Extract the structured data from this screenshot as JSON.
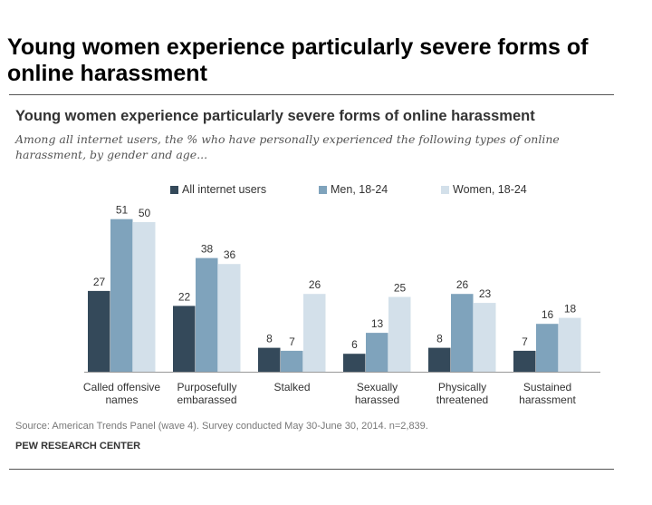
{
  "slide": {
    "title": "Young women experience particularly severe forms of online harassment"
  },
  "chart_data": {
    "type": "bar",
    "title": "Young women experience particularly severe forms of online harassment",
    "subtitle": "Among all internet users, the % who have personally experienced the following types of online harassment, by gender and age...",
    "xlabel": "",
    "ylabel": "",
    "ylim": [
      0,
      51
    ],
    "grid": false,
    "legend_position": "top",
    "categories": [
      [
        "Called offensive",
        "names"
      ],
      [
        "Purposefully",
        "embarassed"
      ],
      [
        "Stalked"
      ],
      [
        "Sexually",
        "harassed"
      ],
      [
        "Physically",
        "threatened"
      ],
      [
        "Sustained",
        "harassment"
      ]
    ],
    "series": [
      {
        "name": "All internet users",
        "color": "#34495a",
        "values": [
          27,
          22,
          8,
          6,
          8,
          7
        ]
      },
      {
        "name": "Men, 18-24",
        "color": "#7fa3bc",
        "values": [
          51,
          38,
          7,
          13,
          26,
          16
        ]
      },
      {
        "name": "Women, 18-24",
        "color": "#d3e0ea",
        "values": [
          50,
          36,
          26,
          25,
          23,
          18
        ]
      }
    ],
    "source": "Source: American Trends Panel (wave 4). Survey conducted May 30-June 30, 2014. n=2,839.",
    "brand": "PEW RESEARCH CENTER"
  }
}
